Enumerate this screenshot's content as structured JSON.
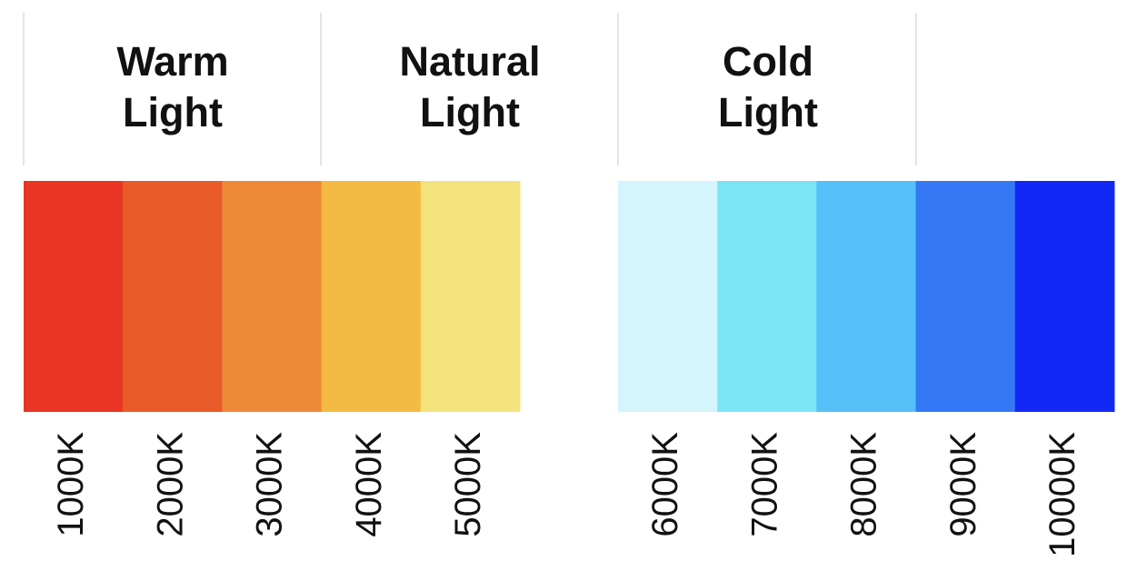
{
  "headings": [
    "Warm Light",
    "Natural Light",
    "Cold Light"
  ],
  "swatches": [
    {
      "label": "1000K",
      "color": "#e93524"
    },
    {
      "label": "2000K",
      "color": "#e95b29"
    },
    {
      "label": "3000K",
      "color": "#ee8937"
    },
    {
      "label": "4000K",
      "color": "#f4bb42"
    },
    {
      "label": "5000K",
      "color": "#f4e27c"
    },
    {
      "label": "6000K",
      "color": "#d3f5fb"
    },
    {
      "label": "7000K",
      "color": "#7be5f5"
    },
    {
      "label": "8000K",
      "color": "#56c0f9"
    },
    {
      "label": "9000K",
      "color": "#3478f5"
    },
    {
      "label": "10000K",
      "color": "#1229f6"
    }
  ]
}
